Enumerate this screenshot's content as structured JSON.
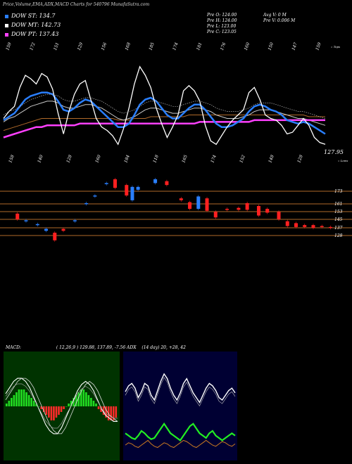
{
  "header": {
    "title": "Price,Volume,EMA,ADX,MACD Charts for 540796  MunafaSutra.com"
  },
  "legend": [
    {
      "label": "DOW ST: 134.7",
      "color": "#2a7fff"
    },
    {
      "label": "DOW MT: 142.73",
      "color": "#ffffff"
    },
    {
      "label": "DOW PT: 137.43",
      "color": "#ff40ff"
    }
  ],
  "quote": {
    "prev_open": "Pre   O: 124.00",
    "prev_high": "Pre   H: 124.00",
    "prev_low": "Pre   L: 123.00",
    "prev_close": "Pre   C: 123.05",
    "avg_volume": "Avg V: 0   M",
    "prev_volume": "Pre   V: 0.006   M"
  },
  "chart_data": [
    {
      "type": "line",
      "name": "price-ema",
      "top_labels": [
        "159",
        "172",
        "151",
        "129",
        "156",
        "168",
        "185",
        "174",
        "181",
        "176",
        "160",
        "150",
        "147",
        "159"
      ],
      "bottom_labels": [
        "158",
        "140",
        "128",
        "160",
        "184",
        "118",
        "165",
        "174",
        "152",
        "148",
        "128"
      ],
      "last_price_label": "127.95",
      "right_top_note": "« Tops",
      "right_bottom_note": "« Lows",
      "price": [
        131,
        135,
        138,
        149,
        156,
        154,
        151,
        157,
        155,
        148,
        134,
        122,
        135,
        145,
        151,
        153,
        142,
        131,
        126,
        124,
        121,
        116,
        125,
        137,
        151,
        161,
        156,
        149,
        137,
        128,
        120,
        126,
        133,
        147,
        150,
        147,
        141,
        127,
        118,
        116,
        121,
        126,
        130,
        133,
        136,
        146,
        149,
        142,
        133,
        131,
        130,
        127,
        122,
        123,
        127,
        131,
        127,
        120,
        117,
        116
      ],
      "ema_short": [
        130,
        132,
        134,
        138,
        142,
        144,
        145,
        146,
        146,
        145,
        141,
        136,
        135,
        137,
        140,
        142,
        141,
        138,
        135,
        132,
        129,
        126,
        126,
        128,
        133,
        139,
        142,
        143,
        141,
        137,
        133,
        131,
        131,
        134,
        137,
        139,
        139,
        136,
        132,
        128,
        126,
        126,
        127,
        129,
        131,
        135,
        138,
        139,
        138,
        136,
        135,
        133,
        130,
        129,
        128,
        129,
        128,
        126,
        124,
        122
      ],
      "ema_mid": [
        129,
        131,
        132,
        134,
        136,
        138,
        139,
        140,
        141,
        141,
        140,
        138,
        137,
        137,
        138,
        139,
        139,
        138,
        137,
        135,
        133,
        131,
        130,
        131,
        132,
        134,
        136,
        137,
        137,
        136,
        135,
        134,
        134,
        135,
        136,
        137,
        137,
        136,
        135,
        133,
        132,
        131,
        131,
        131,
        132,
        133,
        135,
        136,
        136,
        136,
        135,
        134,
        133,
        132,
        131,
        131,
        130,
        129,
        128,
        127
      ],
      "ema_long": [
        124,
        125,
        126,
        127,
        128,
        129,
        130,
        131,
        131,
        131,
        131,
        131,
        131,
        131,
        131,
        131,
        131,
        131,
        131,
        131,
        131,
        130,
        130,
        130,
        131,
        131,
        131,
        132,
        132,
        132,
        132,
        132,
        132,
        132,
        133,
        133,
        133,
        133,
        133,
        133,
        133,
        133,
        133,
        133,
        133,
        133,
        133,
        133,
        133,
        133,
        133,
        133,
        133,
        133,
        133,
        133,
        132,
        132,
        132,
        132
      ],
      "ema_pt": [
        120,
        121,
        122,
        123,
        124,
        125,
        126,
        126,
        127,
        127,
        127,
        127,
        127,
        127,
        128,
        128,
        128,
        128,
        128,
        128,
        128,
        128,
        128,
        128,
        128,
        128,
        128,
        128,
        128,
        128,
        128,
        128,
        128,
        128,
        128,
        128,
        129,
        129,
        129,
        129,
        129,
        129,
        129,
        129,
        129,
        129,
        130,
        130,
        130,
        130,
        130,
        130,
        130,
        130,
        130,
        130,
        130,
        130,
        130,
        130
      ],
      "ylim": [
        110,
        165
      ]
    },
    {
      "type": "bar",
      "name": "price-bands",
      "levels": [
        "173",
        "161",
        "153",
        "145",
        "137",
        "128"
      ],
      "candles": [
        {
          "x": 0.03,
          "o": 144,
          "c": 138,
          "col": "red"
        },
        {
          "x": 0.06,
          "o": 137,
          "c": 136,
          "col": "blue"
        },
        {
          "x": 0.1,
          "o": 133,
          "c": 132,
          "col": "blue"
        },
        {
          "x": 0.13,
          "o": 128,
          "c": 126,
          "col": "blue"
        },
        {
          "x": 0.16,
          "o": 124,
          "c": 116,
          "col": "red"
        },
        {
          "x": 0.19,
          "o": 128,
          "c": 126,
          "col": "red"
        },
        {
          "x": 0.23,
          "o": 137,
          "c": 136,
          "col": "blue"
        },
        {
          "x": 0.27,
          "o": 155,
          "c": 154,
          "col": "blue"
        },
        {
          "x": 0.3,
          "o": 163,
          "c": 162,
          "col": "blue"
        },
        {
          "x": 0.34,
          "o": 176,
          "c": 175,
          "col": "blue"
        },
        {
          "x": 0.37,
          "o": 180,
          "c": 171,
          "col": "red"
        },
        {
          "x": 0.41,
          "o": 174,
          "c": 163,
          "col": "red"
        },
        {
          "x": 0.43,
          "o": 172,
          "c": 158,
          "col": "blue"
        },
        {
          "x": 0.45,
          "o": 172,
          "c": 169,
          "col": "blue"
        },
        {
          "x": 0.51,
          "o": 180,
          "c": 176,
          "col": "blue"
        },
        {
          "x": 0.55,
          "o": 178,
          "c": 174,
          "col": "red"
        },
        {
          "x": 0.6,
          "o": 160,
          "c": 158,
          "col": "red"
        },
        {
          "x": 0.63,
          "o": 156,
          "c": 149,
          "col": "red"
        },
        {
          "x": 0.66,
          "o": 162,
          "c": 149,
          "col": "blue"
        },
        {
          "x": 0.69,
          "o": 160,
          "c": 147,
          "col": "red"
        },
        {
          "x": 0.72,
          "o": 146,
          "c": 140,
          "col": "red"
        },
        {
          "x": 0.76,
          "o": 149,
          "c": 148,
          "col": "red"
        },
        {
          "x": 0.8,
          "o": 150,
          "c": 148,
          "col": "red"
        },
        {
          "x": 0.83,
          "o": 155,
          "c": 148,
          "col": "red"
        },
        {
          "x": 0.87,
          "o": 152,
          "c": 142,
          "col": "red"
        },
        {
          "x": 0.9,
          "o": 149,
          "c": 145,
          "col": "red"
        },
        {
          "x": 0.94,
          "o": 146,
          "c": 138,
          "col": "red"
        },
        {
          "x": 0.97,
          "o": 136,
          "c": 131,
          "col": "red"
        },
        {
          "x": 1.0,
          "o": 134,
          "c": 130,
          "col": "red"
        },
        {
          "x": 1.03,
          "o": 132,
          "c": 130,
          "col": "red"
        },
        {
          "x": 1.06,
          "o": 132,
          "c": 129,
          "col": "red"
        },
        {
          "x": 1.09,
          "o": 131,
          "c": 130,
          "col": "red"
        },
        {
          "x": 1.12,
          "o": 130,
          "c": 129,
          "col": "red"
        }
      ]
    },
    {
      "type": "bar",
      "name": "macd",
      "histogram": [
        1,
        2,
        3,
        4,
        5,
        6,
        6,
        6,
        5,
        4,
        3,
        2,
        1,
        0,
        -1,
        -2,
        -3,
        -4,
        -5,
        -5,
        -4,
        -3,
        -2,
        -1,
        0,
        1,
        2,
        3,
        4,
        5,
        6,
        6,
        5,
        4,
        3,
        2,
        1,
        -1,
        -2,
        -3,
        -4,
        -5,
        -5,
        -5,
        -4
      ],
      "macd_line": [
        4,
        6,
        8,
        9,
        9,
        8,
        6,
        3,
        0,
        -3,
        -6,
        -8,
        -9,
        -9,
        -7,
        -4,
        -1,
        2,
        5,
        7,
        8,
        7,
        5,
        2,
        -1,
        -3,
        -4,
        -5,
        -5
      ],
      "signal_line": [
        2,
        4,
        6,
        8,
        9,
        9,
        8,
        6,
        3,
        0,
        -3,
        -6,
        -8,
        -9,
        -9,
        -7,
        -4,
        -1,
        2,
        5,
        7,
        8,
        7,
        5,
        2,
        -1,
        -3,
        -4,
        -5
      ]
    },
    {
      "type": "line",
      "name": "adx",
      "plus_di": [
        55,
        60,
        62,
        58,
        50,
        55,
        62,
        60,
        52,
        48,
        56,
        64,
        70,
        66,
        58,
        52,
        48,
        54,
        62,
        66,
        60,
        54,
        50,
        46,
        52,
        58,
        62,
        60,
        56,
        50,
        48,
        52,
        56,
        58,
        54
      ],
      "minus_di": [
        20,
        18,
        16,
        15,
        18,
        22,
        20,
        17,
        15,
        16,
        20,
        24,
        28,
        24,
        20,
        18,
        16,
        14,
        18,
        22,
        26,
        28,
        24,
        20,
        18,
        16,
        20,
        22,
        18,
        16,
        14,
        16,
        18,
        20,
        18
      ],
      "adx_line": [
        10,
        12,
        11,
        9,
        8,
        10,
        12,
        14,
        11,
        9,
        8,
        10,
        12,
        11,
        9,
        8,
        10,
        12,
        14,
        13,
        11,
        9,
        8,
        10,
        12,
        14,
        12,
        10,
        9,
        11,
        13,
        12,
        10,
        9,
        11
      ]
    }
  ],
  "indicator_labels": {
    "macd": "MACD:",
    "macd_values": "( 12,26,9 ) 129.88, 137.89, -7.56 ADX",
    "adx_values": "(14  day) 20,  +28,  42"
  }
}
